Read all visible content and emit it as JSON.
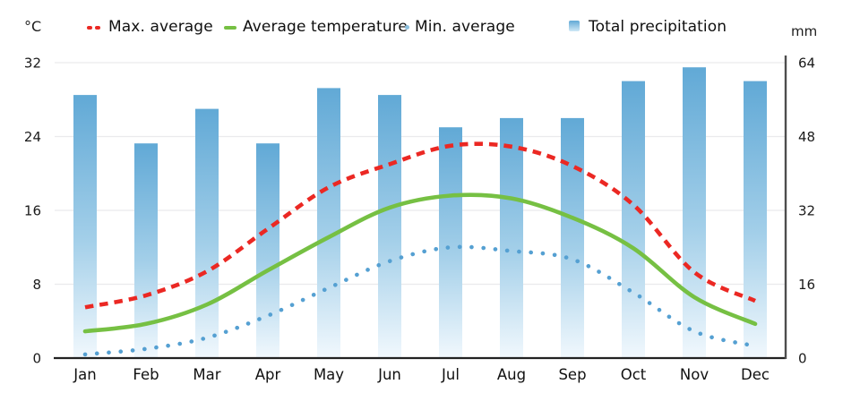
{
  "legend": {
    "items": [
      {
        "label": "Max. average",
        "color": "#eb2823",
        "type": "dashed-line"
      },
      {
        "label": "Average temperature",
        "color": "#76c043",
        "type": "solid-line"
      },
      {
        "label": "Min. average",
        "color": "#8cc0de",
        "type": "dotted-line"
      },
      {
        "label": "Total precipitation",
        "color": "#61a9d6",
        "type": "bar"
      }
    ]
  },
  "chart_data": {
    "type": "line+bar",
    "title": "",
    "categories": [
      "Jan",
      "Feb",
      "Mar",
      "Apr",
      "May",
      "Jun",
      "Jul",
      "Aug",
      "Sep",
      "Oct",
      "Nov",
      "Dec"
    ],
    "series": [
      {
        "name": "Max. average",
        "type": "line",
        "style": "dashed",
        "axis": "left",
        "color": "#eb2823",
        "values": [
          5.5,
          6.8,
          9.4,
          14.0,
          18.5,
          21.0,
          23.0,
          22.9,
          20.8,
          16.6,
          9.3,
          6.2
        ]
      },
      {
        "name": "Average temperature",
        "type": "line",
        "style": "solid",
        "axis": "left",
        "color": "#76c043",
        "values": [
          2.9,
          3.7,
          5.8,
          9.5,
          13.1,
          16.3,
          17.6,
          17.3,
          15.2,
          11.9,
          6.6,
          3.7
        ]
      },
      {
        "name": "Min. average",
        "type": "line",
        "style": "dotted",
        "axis": "left",
        "color": "#55a0d2",
        "values": [
          0.4,
          1.0,
          2.2,
          4.6,
          7.6,
          10.5,
          12.0,
          11.6,
          10.7,
          7.1,
          2.9,
          1.3
        ]
      },
      {
        "name": "Total precipitation",
        "type": "bar",
        "axis": "right",
        "color_top": "#61a9d6",
        "color_mid": "#a3cfe9",
        "color_bottom": "#f1f8fd",
        "values": [
          57,
          46.5,
          54,
          46.5,
          58.5,
          57,
          50,
          52,
          52,
          60,
          63,
          60
        ]
      }
    ],
    "left_axis": {
      "unit": "°C",
      "ticks": [
        0,
        8,
        16,
        24,
        32
      ],
      "range": [
        0,
        32
      ]
    },
    "right_axis": {
      "unit": "mm",
      "ticks": [
        0,
        16,
        32,
        48,
        64
      ],
      "range": [
        0,
        64
      ]
    },
    "grid": true,
    "legend_position": "top"
  }
}
